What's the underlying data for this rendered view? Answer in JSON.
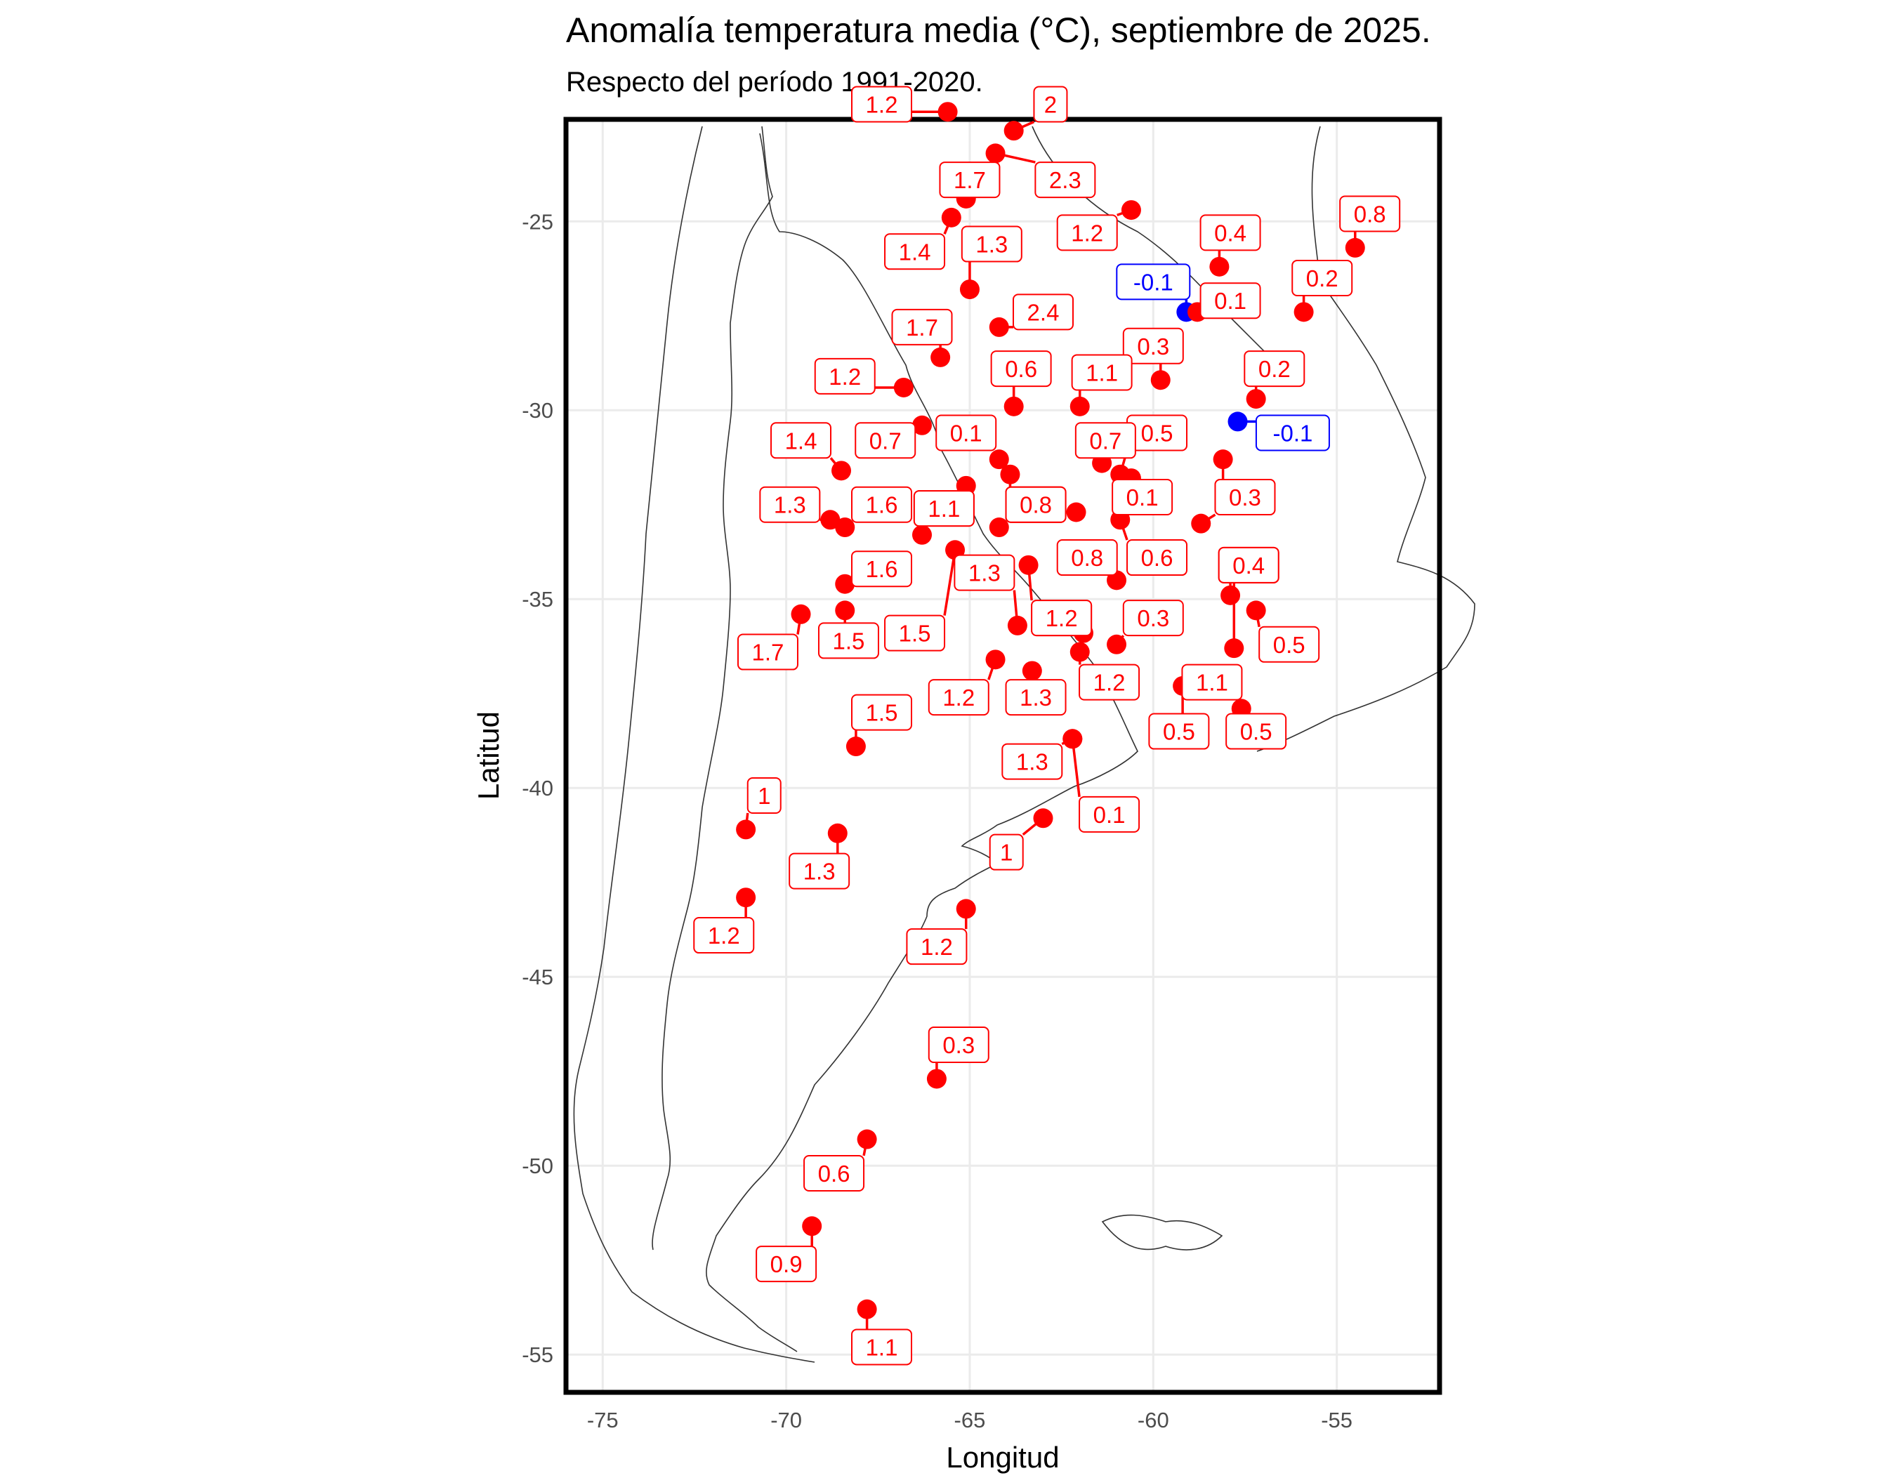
{
  "title": "Anomalía temperatura media (°C), septiembre de 2025.",
  "subtitle": "Respecto del período 1991-2020.",
  "colors": {
    "positive": "#ff0000",
    "negative": "#0000ff",
    "frame": "#000000",
    "grid": "#ebebeb",
    "coast": "#333333"
  },
  "chart_data": {
    "type": "scatter",
    "xlabel": "Longitud",
    "ylabel": "Latitud",
    "xlim": [
      -76,
      -52.2
    ],
    "ylim": [
      -56,
      -22.3
    ],
    "x_ticks": [
      -75,
      -70,
      -65,
      -60,
      -55
    ],
    "y_ticks": [
      -25,
      -30,
      -35,
      -40,
      -45,
      -50,
      -55
    ],
    "x_tick_labels": [
      "-75",
      "-70",
      "-65",
      "-60",
      "-55"
    ],
    "y_tick_labels": [
      "-25",
      "-30",
      "-35",
      "-40",
      "-45",
      "-50",
      "-55"
    ],
    "grid": true,
    "color_rule": "red = positive anomaly, blue = negative anomaly",
    "points": [
      {
        "lon": -65.6,
        "lat": -22.1,
        "value": 1.2,
        "label": "1.2",
        "llon": -67.4,
        "llat": -21.9
      },
      {
        "lon": -63.8,
        "lat": -22.6,
        "value": 2,
        "label": "2",
        "llon": -62.8,
        "llat": -21.9
      },
      {
        "lon": -64.3,
        "lat": -23.2,
        "value": 2.3,
        "label": "2.3",
        "llon": -62.4,
        "llat": -23.9
      },
      {
        "lon": -65.1,
        "lat": -24.4,
        "value": 1.7,
        "label": "1.7",
        "llon": -65.0,
        "llat": -23.9
      },
      {
        "lon": -60.6,
        "lat": -24.7,
        "value": 1.2,
        "label": "1.2",
        "llon": -61.8,
        "llat": -25.3
      },
      {
        "lon": -65.5,
        "lat": -24.9,
        "value": 1.4,
        "label": "1.4",
        "llon": -66.5,
        "llat": -25.8
      },
      {
        "lon": -58.2,
        "lat": -26.2,
        "value": 0.4,
        "label": "0.4",
        "llon": -57.9,
        "llat": -25.3
      },
      {
        "lon": -54.5,
        "lat": -25.7,
        "value": 0.8,
        "label": "0.8",
        "llon": -54.1,
        "llat": -24.8
      },
      {
        "lon": -65.0,
        "lat": -26.8,
        "value": 1.3,
        "label": "1.3",
        "llon": -64.4,
        "llat": -25.6
      },
      {
        "lon": -59.1,
        "lat": -27.4,
        "value": -0.1,
        "label": "-0.1",
        "llon": -60.0,
        "llat": -26.6
      },
      {
        "lon": -58.8,
        "lat": -27.4,
        "value": 0.1,
        "label": "0.1",
        "llon": -57.9,
        "llat": -27.1
      },
      {
        "lon": -55.9,
        "lat": -27.4,
        "value": 0.2,
        "label": "0.2",
        "llon": -55.4,
        "llat": -26.5
      },
      {
        "lon": -64.2,
        "lat": -27.8,
        "value": 2.4,
        "label": "2.4",
        "llon": -63.0,
        "llat": -27.4
      },
      {
        "lon": -65.8,
        "lat": -28.6,
        "value": 1.7,
        "label": "1.7",
        "llon": -66.3,
        "llat": -27.8
      },
      {
        "lon": -59.8,
        "lat": -29.2,
        "value": 0.3,
        "label": "0.3",
        "llon": -60.0,
        "llat": -28.3
      },
      {
        "lon": -57.2,
        "lat": -29.7,
        "value": 0.2,
        "label": "0.2",
        "llon": -56.7,
        "llat": -28.9
      },
      {
        "lon": -66.8,
        "lat": -29.4,
        "value": 1.2,
        "label": "1.2",
        "llon": -68.4,
        "llat": -29.1
      },
      {
        "lon": -63.8,
        "lat": -29.9,
        "value": 0.6,
        "label": "0.6",
        "llon": -63.6,
        "llat": -28.9
      },
      {
        "lon": -62.0,
        "lat": -29.9,
        "value": 1.1,
        "label": "1.1",
        "llon": -61.4,
        "llat": -29.0
      },
      {
        "lon": -57.7,
        "lat": -30.3,
        "value": -0.1,
        "label": "-0.1",
        "llon": -56.2,
        "llat": -30.6
      },
      {
        "lon": -66.3,
        "lat": -30.4,
        "value": 0.7,
        "label": "0.7",
        "llon": -67.3,
        "llat": -30.8
      },
      {
        "lon": -64.2,
        "lat": -31.3,
        "value": 0.1,
        "label": "0.1",
        "llon": -65.1,
        "llat": -30.6
      },
      {
        "lon": -60.9,
        "lat": -31.7,
        "value": 0.5,
        "label": "0.5",
        "llon": -59.9,
        "llat": -30.6
      },
      {
        "lon": -68.5,
        "lat": -31.6,
        "value": 1.4,
        "label": "1.4",
        "llon": -69.6,
        "llat": -30.8
      },
      {
        "lon": -61.4,
        "lat": -31.4,
        "value": 0.7,
        "label": "0.7",
        "llon": -61.3,
        "llat": -30.8
      },
      {
        "lon": -63.9,
        "lat": -31.7,
        "value": 0.8,
        "label": "0.8",
        "llon": -63.2,
        "llat": -32.5
      },
      {
        "lon": -65.1,
        "lat": -32.0,
        "value": 1.1,
        "label": "1.1",
        "llon": -65.7,
        "llat": -32.6
      },
      {
        "lon": -60.6,
        "lat": -31.8,
        "value": 0.1,
        "label": "0.1",
        "llon": -60.3,
        "llat": -32.3
      },
      {
        "lon": -58.1,
        "lat": -31.3,
        "value": 0.3,
        "label": "0.3",
        "llon": -57.5,
        "llat": -32.3
      },
      {
        "lon": -68.8,
        "lat": -32.9,
        "value": 1.3,
        "label": "1.3",
        "llon": -69.9,
        "llat": -32.5
      },
      {
        "lon": -68.4,
        "lat": -33.1,
        "value": 1.6,
        "label": "1.6",
        "llon": -67.4,
        "llat": -32.5
      },
      {
        "lon": -62.1,
        "lat": -32.7,
        "value": 0.8,
        "label": "0.8",
        "llon": -63.2,
        "llat": -32.5
      },
      {
        "lon": -64.2,
        "lat": -33.1,
        "value": 0.8,
        "label": "0.8",
        "llon": -63.2,
        "llat": -32.5
      },
      {
        "lon": -66.3,
        "lat": -33.3,
        "value": 1.1,
        "label": "1.1",
        "llon": -65.7,
        "llat": -32.6
      },
      {
        "lon": -60.9,
        "lat": -32.9,
        "value": 0.6,
        "label": "0.6",
        "llon": -59.9,
        "llat": -33.9
      },
      {
        "lon": -58.7,
        "lat": -33.0,
        "value": 0.3,
        "label": "0.3",
        "llon": -57.5,
        "llat": -32.3
      },
      {
        "lon": -65.4,
        "lat": -33.7,
        "value": 1.5,
        "label": "1.5",
        "llon": -66.5,
        "llat": -35.9
      },
      {
        "lon": -63.4,
        "lat": -34.1,
        "value": 1.2,
        "label": "1.2",
        "llon": -62.5,
        "llat": -35.5
      },
      {
        "lon": -61.0,
        "lat": -34.5,
        "value": 0.8,
        "label": "0.8",
        "llon": -61.8,
        "llat": -33.9
      },
      {
        "lon": -57.9,
        "lat": -34.9,
        "value": 0.4,
        "label": "0.4",
        "llon": -57.4,
        "llat": -34.1
      },
      {
        "lon": -68.4,
        "lat": -34.6,
        "value": 1.6,
        "label": "1.6",
        "llon": -67.4,
        "llat": -34.2
      },
      {
        "lon": -57.2,
        "lat": -35.3,
        "value": 0.5,
        "label": "0.5",
        "llon": -56.3,
        "llat": -36.2
      },
      {
        "lon": -69.6,
        "lat": -35.4,
        "value": 1.7,
        "label": "1.7",
        "llon": -70.5,
        "llat": -36.4
      },
      {
        "lon": -68.4,
        "lat": -35.3,
        "value": 1.5,
        "label": "1.5",
        "llon": -68.3,
        "llat": -36.1
      },
      {
        "lon": -63.7,
        "lat": -35.7,
        "value": 1.3,
        "label": "1.3",
        "llon": -64.6,
        "llat": -34.3
      },
      {
        "lon": -61.9,
        "lat": -35.9,
        "value": 1.2,
        "label": "1.2",
        "llon": -62.5,
        "llat": -35.5
      },
      {
        "lon": -61.0,
        "lat": -36.2,
        "value": 0.3,
        "label": "0.3",
        "llon": -60.0,
        "llat": -35.5
      },
      {
        "lon": -57.8,
        "lat": -36.3,
        "value": 0.4,
        "label": "0.4",
        "llon": -57.4,
        "llat": -34.1
      },
      {
        "lon": -64.3,
        "lat": -36.6,
        "value": 1.2,
        "label": "1.2",
        "llon": -65.3,
        "llat": -37.6
      },
      {
        "lon": -62.0,
        "lat": -36.4,
        "value": 1.2,
        "label": "1.2",
        "llon": -61.2,
        "llat": -37.2
      },
      {
        "lon": -63.3,
        "lat": -36.9,
        "value": 1.3,
        "label": "1.3",
        "llon": -63.2,
        "llat": -37.6
      },
      {
        "lon": -59.2,
        "lat": -37.3,
        "value": 0.5,
        "label": "0.5",
        "llon": -59.3,
        "llat": -38.5
      },
      {
        "lon": -58.8,
        "lat": -37.2,
        "value": 1.1,
        "label": "1.1",
        "llon": -58.4,
        "llat": -37.2
      },
      {
        "lon": -57.6,
        "lat": -37.9,
        "value": 0.5,
        "label": "0.5",
        "llon": -57.2,
        "llat": -38.5
      },
      {
        "lon": -68.1,
        "lat": -38.9,
        "value": 1.5,
        "label": "1.5",
        "llon": -67.4,
        "llat": -38.0
      },
      {
        "lon": -62.2,
        "lat": -38.7,
        "value": 1.3,
        "label": "1.3",
        "llon": -63.3,
        "llat": -39.3
      },
      {
        "lon": -62.2,
        "lat": -38.7,
        "value": 0.1,
        "label": "0.1",
        "llon": -61.2,
        "llat": -40.7
      },
      {
        "lon": -71.1,
        "lat": -41.1,
        "value": 1,
        "label": "1",
        "llon": -70.6,
        "llat": -40.2
      },
      {
        "lon": -68.6,
        "lat": -41.2,
        "value": 1.3,
        "label": "1.3",
        "llon": -69.1,
        "llat": -42.2
      },
      {
        "lon": -63.0,
        "lat": -40.8,
        "value": 1,
        "label": "1",
        "llon": -64.0,
        "llat": -41.7
      },
      {
        "lon": -71.1,
        "lat": -42.9,
        "value": 1.2,
        "label": "1.2",
        "llon": -71.7,
        "llat": -43.9
      },
      {
        "lon": -65.1,
        "lat": -43.2,
        "value": 1.2,
        "label": "1.2",
        "llon": -65.9,
        "llat": -44.2
      },
      {
        "lon": -65.9,
        "lat": -47.7,
        "value": 0.3,
        "label": "0.3",
        "llon": -65.3,
        "llat": -46.8
      },
      {
        "lon": -67.8,
        "lat": -49.3,
        "value": 0.6,
        "label": "0.6",
        "llon": -68.7,
        "llat": -50.2
      },
      {
        "lon": -69.3,
        "lat": -51.6,
        "value": 0.9,
        "label": "0.9",
        "llon": -70.0,
        "llat": -52.6
      },
      {
        "lon": -67.8,
        "lat": -53.8,
        "value": 1.1,
        "label": "1.1",
        "llon": -67.4,
        "llat": -54.8
      }
    ]
  }
}
